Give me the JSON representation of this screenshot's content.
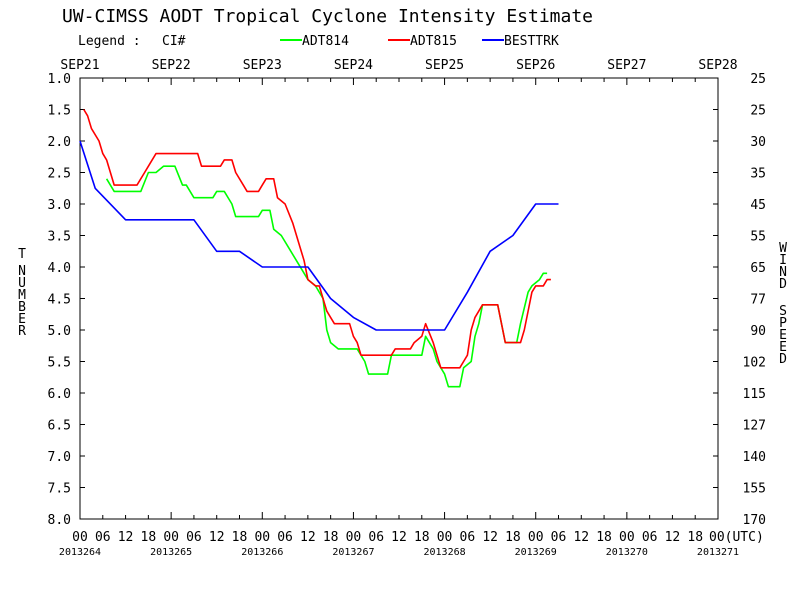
{
  "chart_data": {
    "type": "line",
    "title": "UW-CIMSS AODT Tropical Cyclone Intensity Estimate",
    "legend_label": "Legend :",
    "legend_ci": "CI#",
    "legend_position": "top",
    "left_axis_label": [
      "T",
      "NUMBER"
    ],
    "right_axis_label": [
      "WIND",
      "SPEED"
    ],
    "left_ticks": [
      "1.0",
      "1.5",
      "2.0",
      "2.5",
      "3.0",
      "3.5",
      "4.0",
      "4.5",
      "5.0",
      "5.5",
      "6.0",
      "6.5",
      "7.0",
      "7.5",
      "8.0"
    ],
    "right_ticks": [
      "25",
      "25",
      "30",
      "35",
      "45",
      "55",
      "65",
      "77",
      "90",
      "102",
      "115",
      "127",
      "140",
      "155",
      "170"
    ],
    "ylim": [
      1.0,
      8.0
    ],
    "y_inverted": true,
    "xlim_hours": [
      0,
      168
    ],
    "date_labels": [
      "SEP21",
      "SEP22",
      "SEP23",
      "SEP24",
      "SEP25",
      "SEP26",
      "SEP27",
      "SEP28"
    ],
    "hour_labels": [
      "00",
      "06",
      "12",
      "18",
      "00",
      "06",
      "12",
      "18",
      "00",
      "06",
      "12",
      "18",
      "00",
      "06",
      "12",
      "18",
      "00",
      "06",
      "12",
      "18",
      "00",
      "06",
      "12",
      "18",
      "00",
      "06",
      "12",
      "18",
      "00(UTC)"
    ],
    "julian_labels": [
      "2013264",
      "2013265",
      "2013266",
      "2013267",
      "2013268",
      "2013269",
      "2013270",
      "2013271"
    ],
    "grid": false,
    "series": [
      {
        "name": "ADT814",
        "color": "#00ff00",
        "points": [
          [
            7,
            2.6
          ],
          [
            9,
            2.8
          ],
          [
            16,
            2.8
          ],
          [
            18,
            2.5
          ],
          [
            20,
            2.5
          ],
          [
            22,
            2.4
          ],
          [
            25,
            2.4
          ],
          [
            27,
            2.7
          ],
          [
            28,
            2.7
          ],
          [
            30,
            2.9
          ],
          [
            35,
            2.9
          ],
          [
            36,
            2.8
          ],
          [
            38,
            2.8
          ],
          [
            40,
            3.0
          ],
          [
            41,
            3.2
          ],
          [
            45,
            3.2
          ],
          [
            47,
            3.2
          ],
          [
            48,
            3.1
          ],
          [
            50,
            3.1
          ],
          [
            51,
            3.4
          ],
          [
            53,
            3.5
          ],
          [
            55,
            3.7
          ],
          [
            57,
            3.9
          ],
          [
            60,
            4.2
          ],
          [
            62,
            4.3
          ],
          [
            64,
            4.5
          ],
          [
            65,
            5.0
          ],
          [
            66,
            5.2
          ],
          [
            68,
            5.3
          ],
          [
            73,
            5.3
          ],
          [
            75,
            5.5
          ],
          [
            76,
            5.7
          ],
          [
            81,
            5.7
          ],
          [
            82,
            5.4
          ],
          [
            90,
            5.4
          ],
          [
            91,
            5.1
          ],
          [
            93,
            5.3
          ],
          [
            94,
            5.5
          ],
          [
            96,
            5.7
          ],
          [
            97,
            5.9
          ],
          [
            100,
            5.9
          ],
          [
            101,
            5.6
          ],
          [
            103,
            5.5
          ],
          [
            104,
            5.1
          ],
          [
            105,
            4.9
          ],
          [
            106,
            4.6
          ],
          [
            110,
            4.6
          ],
          [
            112,
            5.2
          ],
          [
            115,
            5.2
          ],
          [
            116,
            4.9
          ],
          [
            118,
            4.4
          ],
          [
            119,
            4.3
          ],
          [
            121,
            4.2
          ],
          [
            122,
            4.1
          ],
          [
            123,
            4.1
          ]
        ]
      },
      {
        "name": "ADT815",
        "color": "#ff0000",
        "points": [
          [
            1,
            1.5
          ],
          [
            2,
            1.6
          ],
          [
            3,
            1.8
          ],
          [
            5,
            2.0
          ],
          [
            6,
            2.2
          ],
          [
            7,
            2.3
          ],
          [
            8,
            2.5
          ],
          [
            9,
            2.7
          ],
          [
            15,
            2.7
          ],
          [
            17,
            2.5
          ],
          [
            18,
            2.4
          ],
          [
            20,
            2.2
          ],
          [
            31,
            2.2
          ],
          [
            32,
            2.4
          ],
          [
            37,
            2.4
          ],
          [
            38,
            2.3
          ],
          [
            40,
            2.3
          ],
          [
            41,
            2.5
          ],
          [
            43,
            2.7
          ],
          [
            44,
            2.8
          ],
          [
            47,
            2.8
          ],
          [
            48,
            2.7
          ],
          [
            49,
            2.6
          ],
          [
            51,
            2.6
          ],
          [
            52,
            2.9
          ],
          [
            54,
            3.0
          ],
          [
            56,
            3.3
          ],
          [
            58,
            3.7
          ],
          [
            59,
            3.9
          ],
          [
            60,
            4.2
          ],
          [
            62,
            4.3
          ],
          [
            63,
            4.3
          ],
          [
            64,
            4.5
          ],
          [
            65,
            4.7
          ],
          [
            66,
            4.8
          ],
          [
            67,
            4.9
          ],
          [
            71,
            4.9
          ],
          [
            72,
            5.1
          ],
          [
            73,
            5.2
          ],
          [
            74,
            5.4
          ],
          [
            82,
            5.4
          ],
          [
            83,
            5.3
          ],
          [
            87,
            5.3
          ],
          [
            88,
            5.2
          ],
          [
            90,
            5.1
          ],
          [
            91,
            4.9
          ],
          [
            93,
            5.2
          ],
          [
            94,
            5.4
          ],
          [
            95,
            5.6
          ],
          [
            100,
            5.6
          ],
          [
            101,
            5.5
          ],
          [
            102,
            5.4
          ],
          [
            103,
            5.0
          ],
          [
            104,
            4.8
          ],
          [
            105,
            4.7
          ],
          [
            106,
            4.6
          ],
          [
            110,
            4.6
          ],
          [
            111,
            4.9
          ],
          [
            112,
            5.2
          ],
          [
            116,
            5.2
          ],
          [
            117,
            5.0
          ],
          [
            118,
            4.7
          ],
          [
            119,
            4.4
          ],
          [
            120,
            4.3
          ],
          [
            122,
            4.3
          ],
          [
            123,
            4.2
          ],
          [
            124,
            4.2
          ]
        ]
      },
      {
        "name": "BESTTRK",
        "color": "#0000ff",
        "points": [
          [
            0,
            2.0
          ],
          [
            4,
            2.75
          ],
          [
            12,
            3.25
          ],
          [
            30,
            3.25
          ],
          [
            36,
            3.75
          ],
          [
            42,
            3.75
          ],
          [
            48,
            4.0
          ],
          [
            60,
            4.0
          ],
          [
            66,
            4.5
          ],
          [
            72,
            4.8
          ],
          [
            78,
            5.0
          ],
          [
            96,
            5.0
          ],
          [
            102,
            4.4
          ],
          [
            108,
            3.75
          ],
          [
            114,
            3.5
          ],
          [
            120,
            3.0
          ],
          [
            126,
            3.0
          ]
        ]
      }
    ]
  }
}
